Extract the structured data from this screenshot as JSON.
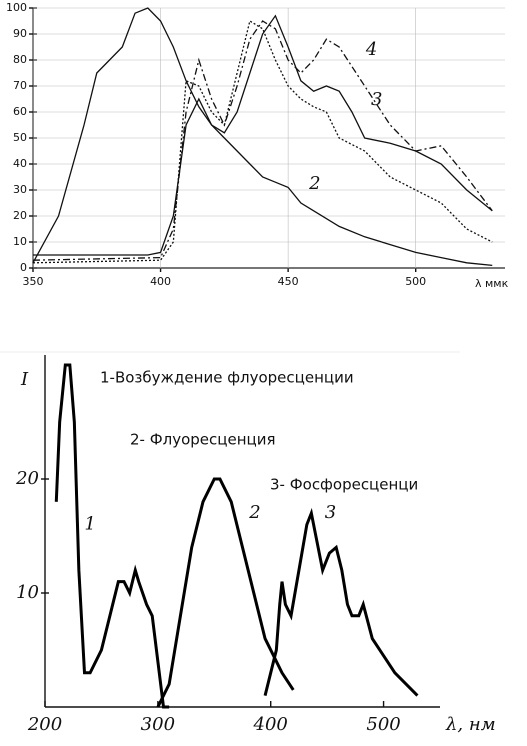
{
  "chart_data": [
    {
      "type": "line",
      "xlabel": "λ ммк",
      "xlim": [
        350,
        535
      ],
      "ylim": [
        0,
        100
      ],
      "xticks": [
        350,
        400,
        450,
        500
      ],
      "yticks": [
        0,
        10,
        20,
        30,
        40,
        50,
        60,
        70,
        80,
        90,
        100
      ],
      "series": [
        {
          "color": "#111",
          "dash": "none",
          "x": [
            350,
            380,
            395,
            400,
            405,
            410,
            415,
            420,
            425,
            430,
            435,
            440,
            445,
            450,
            455,
            460,
            465,
            470,
            475,
            480,
            490,
            500,
            510,
            520,
            530
          ],
          "values": [
            5,
            5,
            5,
            6,
            20,
            55,
            65,
            55,
            52,
            60,
            75,
            90,
            97,
            85,
            72,
            68,
            70,
            68,
            60,
            50,
            48,
            45,
            40,
            30,
            22
          ]
        },
        {
          "name": "2",
          "color": "#111",
          "dash": "none",
          "x": [
            350,
            360,
            370,
            375,
            380,
            385,
            390,
            395,
            400,
            405,
            410,
            415,
            420,
            425,
            430,
            435,
            440,
            445,
            450,
            455,
            460,
            470,
            480,
            490,
            500,
            510,
            520,
            530
          ],
          "values": [
            2,
            20,
            55,
            75,
            80,
            85,
            98,
            100,
            95,
            85,
            72,
            62,
            55,
            50,
            45,
            40,
            35,
            33,
            31,
            25,
            22,
            16,
            12,
            9,
            6,
            4,
            2,
            1
          ]
        },
        {
          "name": "3",
          "color": "#111",
          "dash": "7 3 2 3",
          "x": [
            350,
            400,
            405,
            410,
            415,
            420,
            425,
            430,
            435,
            440,
            445,
            450,
            455,
            460,
            465,
            470,
            480,
            490,
            500,
            510,
            520,
            530
          ],
          "values": [
            3,
            4,
            15,
            60,
            80,
            65,
            55,
            70,
            88,
            95,
            92,
            80,
            75,
            80,
            88,
            85,
            70,
            55,
            45,
            47,
            35,
            22
          ]
        },
        {
          "name": "4",
          "color": "#111",
          "dash": "2 2",
          "x": [
            350,
            400,
            405,
            410,
            415,
            420,
            425,
            430,
            435,
            440,
            445,
            450,
            455,
            460,
            465,
            470,
            480,
            490,
            500,
            510,
            520,
            530
          ],
          "values": [
            2,
            3,
            10,
            72,
            70,
            60,
            55,
            75,
            95,
            92,
            80,
            70,
            65,
            62,
            60,
            50,
            45,
            35,
            30,
            25,
            15,
            10
          ]
        }
      ]
    },
    {
      "type": "line",
      "ylabel": "I",
      "xlabel": "λ, нм",
      "annotations": [
        "1-Возбуждение флуоресценции",
        "2- Флуоресценция",
        "3- Фосфоресценци"
      ],
      "xlim": [
        200,
        550
      ],
      "ylim": [
        0,
        30
      ],
      "xticks": [
        200,
        300,
        400,
        500
      ],
      "yticks": [
        10,
        20
      ],
      "series": [
        {
          "name": "1",
          "color": "#000",
          "dash": "none",
          "x": [
            210,
            213,
            218,
            222,
            226,
            230,
            235,
            240,
            250,
            260,
            265,
            270,
            275,
            280,
            283,
            290,
            295,
            300,
            305,
            310
          ],
          "values": [
            18,
            25,
            30,
            30,
            25,
            12,
            3,
            3,
            5,
            9,
            11,
            11,
            10,
            12,
            11,
            9,
            8,
            4,
            0,
            0
          ]
        },
        {
          "name": "2",
          "color": "#000",
          "dash": "none",
          "x": [
            300,
            310,
            320,
            330,
            340,
            350,
            355,
            365,
            375,
            385,
            395,
            410,
            420
          ],
          "values": [
            0,
            2,
            8,
            14,
            18,
            20,
            20,
            18,
            14,
            10,
            6,
            3,
            1.5
          ]
        },
        {
          "name": "3",
          "color": "#000",
          "dash": "none",
          "x": [
            395,
            405,
            408,
            410,
            413,
            418,
            425,
            432,
            436,
            440,
            446,
            452,
            458,
            463,
            468,
            472,
            478,
            482,
            490,
            510,
            530
          ],
          "values": [
            1,
            5,
            9,
            11,
            9,
            8,
            12,
            16,
            17,
            15,
            12,
            13.5,
            14,
            12,
            9,
            8,
            8,
            9,
            6,
            3,
            1
          ]
        }
      ]
    }
  ]
}
